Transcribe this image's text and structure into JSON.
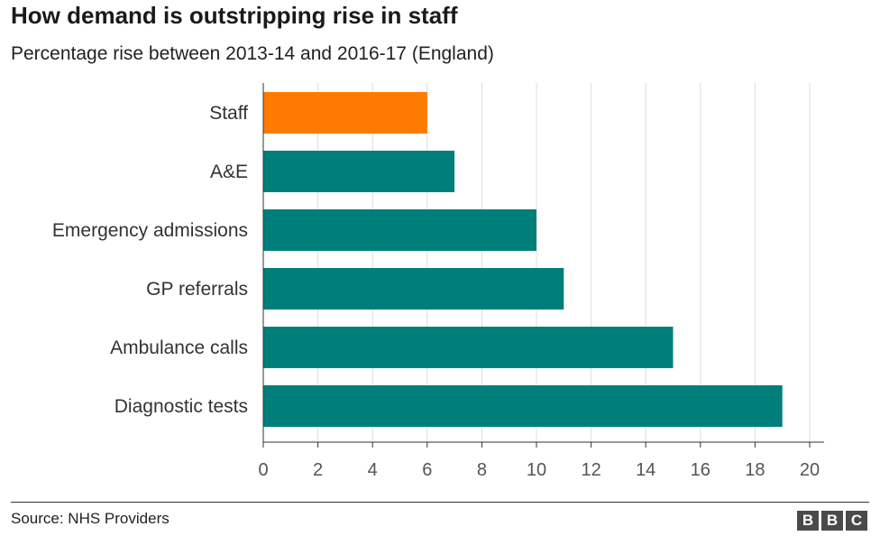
{
  "header": {
    "title": "How demand is outstripping rise in staff",
    "subtitle": "Percentage rise between 2013-14 and 2016-17 (England)"
  },
  "footer": {
    "source": "Source: NHS Providers",
    "logo_letters": [
      "B",
      "B",
      "C"
    ]
  },
  "colors": {
    "highlight": "#FF7A00",
    "bars": "#007F7A",
    "grid": "#dddddd",
    "axis": "#333333"
  },
  "chart_data": {
    "type": "bar",
    "orientation": "horizontal",
    "categories": [
      "Staff",
      "A&E",
      "Emergency admissions",
      "GP referrals",
      "Ambulance calls",
      "Diagnostic tests"
    ],
    "values": [
      6,
      7,
      10,
      11,
      15,
      19
    ],
    "highlighted_category": "Staff",
    "xlim": [
      0,
      20
    ],
    "xticks": [
      0,
      2,
      4,
      6,
      8,
      10,
      12,
      14,
      16,
      18,
      20
    ],
    "grid": true,
    "title": "How demand is outstripping rise in staff",
    "subtitle": "Percentage rise between 2013-14 and 2016-17 (England)"
  }
}
